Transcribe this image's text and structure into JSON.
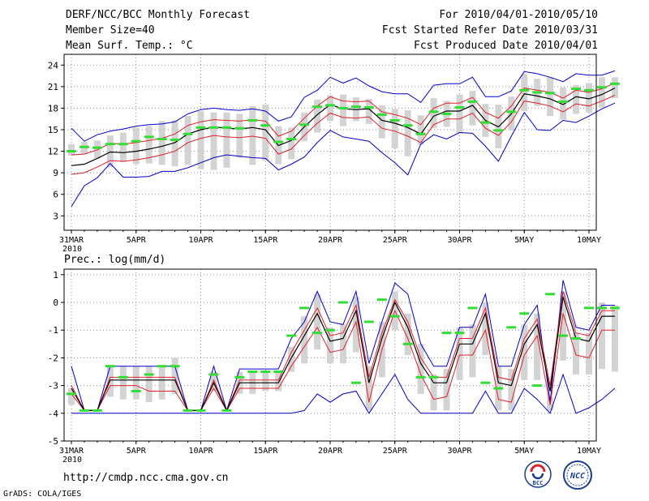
{
  "header": {
    "title": "DERF/NCC/BCC Monthly Forecast",
    "member_size": "Member Size=40",
    "variable": "Mean Surf. Temp.: °C",
    "period": "For 2010/04/01-2010/05/10",
    "started": "Fcst Started Refer Date 2010/03/31",
    "produced": "Fcst Produced Date 2010/04/01"
  },
  "footer": {
    "url": "http://cmdp.ncc.cma.gov.cn",
    "grads": "GrADS: COLA/IGES",
    "logo_bcc": "BCC",
    "logo_ncc": "NCC"
  },
  "colors": {
    "mean": "#000000",
    "spread": "#e0202a",
    "extreme": "#0000cc",
    "box": "#d3d3d3",
    "median": "#33dd33"
  },
  "chart_data": [
    {
      "type": "line",
      "title": "Mean Surf. Temp.: °C",
      "ylabel": "°C",
      "ylim": [
        1,
        25.5
      ],
      "yticks": [
        3,
        6,
        9,
        12,
        15,
        18,
        21,
        24
      ],
      "xticks": [
        0,
        5,
        10,
        15,
        20,
        25,
        30,
        35,
        40
      ],
      "xtick_labels": [
        "31MAR",
        "5APR",
        "10APR",
        "15APR",
        "20APR",
        "25APR",
        "30APR",
        "5MAY",
        "10MAY"
      ],
      "xtick_sublabels": [
        "2010",
        "",
        "",
        "",
        "",
        "",
        "",
        "",
        ""
      ],
      "grid": true,
      "series": [
        {
          "name": "ensemble mean",
          "color": "#000000",
          "values": [
            10,
            10.2,
            11,
            11.9,
            11.8,
            12,
            12.3,
            12.7,
            13.2,
            14.4,
            15,
            15.4,
            15.2,
            15.1,
            15.3,
            15,
            12.8,
            13.5,
            15.4,
            17.1,
            18.5,
            17.9,
            17.8,
            17.9,
            16.3,
            15.9,
            15.3,
            14.4,
            16.9,
            17.6,
            17.6,
            18.4,
            16.3,
            15.4,
            17.2,
            20,
            19.7,
            19.3,
            18.5,
            19.6,
            19.3,
            19.9,
            20.8
          ]
        },
        {
          "name": "mean + 1 sd",
          "color": "#e0202a",
          "values": [
            11.5,
            11.6,
            12.2,
            13.1,
            13,
            13.2,
            13.5,
            13.8,
            14.4,
            15.6,
            16.1,
            16.4,
            16.3,
            16.2,
            16.4,
            16.2,
            14.1,
            14.8,
            16.6,
            18.3,
            19.6,
            19,
            18.9,
            19,
            17.5,
            17.1,
            16.6,
            15.7,
            18,
            18.7,
            18.7,
            19.5,
            17.4,
            16.6,
            18.3,
            20.8,
            20.5,
            20.2,
            19.4,
            20.5,
            20.2,
            20.7,
            21.5
          ]
        },
        {
          "name": "mean - 1 sd",
          "color": "#e0202a",
          "values": [
            8.8,
            9,
            9.8,
            10.7,
            10.6,
            10.8,
            11.1,
            11.5,
            12,
            13.2,
            13.8,
            14.2,
            14,
            13.9,
            14.1,
            13.8,
            11.6,
            12.3,
            14.2,
            15.9,
            17.3,
            16.7,
            16.6,
            16.8,
            15.2,
            14.8,
            14.1,
            13.2,
            15.7,
            16.5,
            16.5,
            17.3,
            15.2,
            14.2,
            16.1,
            19,
            18.7,
            18.3,
            17.5,
            18.6,
            18.3,
            19,
            19.8
          ]
        },
        {
          "name": "ensemble max",
          "color": "#0000cc",
          "values": [
            15.2,
            13.4,
            14.3,
            14.8,
            15.1,
            15.5,
            15.7,
            15.8,
            16.1,
            17.2,
            17.8,
            18,
            17.8,
            17.7,
            17.9,
            17.6,
            16.2,
            16.8,
            19.5,
            20.5,
            22.3,
            21.5,
            22.2,
            21.1,
            20.3,
            20,
            20,
            18.8,
            21.2,
            21.4,
            21.4,
            22.3,
            19.6,
            19.6,
            20.4,
            23.1,
            22.8,
            22.3,
            21.7,
            22.8,
            22.6,
            22.6,
            23.2
          ]
        },
        {
          "name": "ensemble min",
          "color": "#0000cc",
          "values": [
            4.3,
            7.2,
            8.3,
            10.3,
            8.4,
            8.4,
            8.5,
            9.2,
            9.2,
            9.7,
            10.4,
            11.1,
            11.5,
            11.3,
            11.1,
            11,
            9.4,
            10.2,
            11.2,
            13.2,
            14.9,
            14,
            13.7,
            13.4,
            11.8,
            10.4,
            8.7,
            13,
            14.3,
            13.7,
            14.6,
            14.5,
            12.7,
            10.6,
            14.1,
            17.4,
            15,
            14.9,
            16.3,
            16,
            16.9,
            17.9,
            18.7
          ]
        },
        {
          "name": "box top",
          "color": "#d3d3d3",
          "values": [
            13,
            13.3,
            13.5,
            14.2,
            14.6,
            15.3,
            15.5,
            16.2,
            16.3,
            16.9,
            17.6,
            17.4,
            17.4,
            17.2,
            18.3,
            18.5,
            15.5,
            15.3,
            17.4,
            19.2,
            19.8,
            19.9,
            19.5,
            19.3,
            18.4,
            17.9,
            17.7,
            17,
            19.4,
            19,
            19.9,
            20.4,
            18.6,
            18.5,
            19.6,
            22.7,
            22.1,
            22.3,
            20.9,
            21.2,
            21.5,
            22.3,
            22.3
          ]
        },
        {
          "name": "box bottom",
          "color": "#d3d3d3",
          "values": [
            11.4,
            11.6,
            11,
            9.8,
            10.5,
            10.2,
            10.3,
            10.1,
            9.9,
            10.1,
            9.5,
            9.4,
            9.7,
            11.1,
            10.1,
            10.7,
            10.2,
            10.9,
            13.4,
            14.6,
            16.2,
            15.5,
            16.2,
            15.8,
            13.8,
            12.4,
            11.3,
            12.9,
            15.2,
            15.4,
            14.5,
            15.6,
            14,
            12.4,
            14.9,
            17.6,
            18.3,
            16.9,
            16.4,
            17.2,
            17.4,
            18.1,
            19.4
          ]
        },
        {
          "name": "median",
          "color": "#33dd33",
          "values": [
            12,
            12.6,
            12.5,
            13,
            13,
            13.4,
            14,
            13.7,
            13.6,
            14.4,
            15.3,
            15.3,
            15.3,
            15.2,
            16.3,
            15.6,
            13.3,
            13.7,
            15.7,
            18.2,
            18.4,
            18,
            18.2,
            18.1,
            17.1,
            16.3,
            15.6,
            14.4,
            17.5,
            17.2,
            18.1,
            18.9,
            16,
            14.9,
            17.5,
            20.5,
            20.2,
            20.1,
            18.9,
            20.7,
            20.5,
            20.9,
            21.4
          ]
        }
      ]
    },
    {
      "type": "line",
      "title": "Prec.: log(mm/d)",
      "ylabel": "log(mm/d)",
      "ylim": [
        -5,
        1.2
      ],
      "yticks": [
        -5,
        -4,
        -3,
        -2,
        -1,
        0,
        1
      ],
      "xticks": [
        0,
        5,
        10,
        15,
        20,
        25,
        30,
        35,
        40
      ],
      "xtick_labels": [
        "31MAR",
        "5APR",
        "10APR",
        "15APR",
        "20APR",
        "25APR",
        "30APR",
        "5MAY",
        "10MAY"
      ],
      "xtick_sublabels": [
        "2010",
        "",
        "",
        "",
        "",
        "",
        "",
        "",
        ""
      ],
      "grid": true,
      "series": [
        {
          "name": "ensemble mean",
          "color": "#000000",
          "values": [
            -3.1,
            -3.9,
            -3.9,
            -2.8,
            -2.8,
            -2.8,
            -2.8,
            -2.8,
            -2.8,
            -3.9,
            -3.9,
            -2.9,
            -3.9,
            -2.9,
            -2.9,
            -2.9,
            -2.9,
            -2,
            -1.2,
            -0.4,
            -1.4,
            -1.3,
            -0.3,
            -2.9,
            -1.3,
            0,
            -0.9,
            -2.2,
            -2.9,
            -2.9,
            -1.5,
            -1.5,
            -0.4,
            -2.9,
            -3,
            -1.5,
            -0.8,
            -3.2,
            0.2,
            -1.3,
            -1.4,
            -0.5,
            -0.5
          ]
        },
        {
          "name": "mean + 1 sd",
          "color": "#e0202a",
          "values": [
            -3,
            -3.9,
            -3.9,
            -2.7,
            -2.7,
            -2.7,
            -2.7,
            -2.7,
            -2.7,
            -3.9,
            -3.9,
            -2.8,
            -3.9,
            -2.8,
            -2.8,
            -2.8,
            -2.8,
            -1.8,
            -1,
            -0.2,
            -1.2,
            -1.1,
            -0.1,
            -2.7,
            -1.1,
            0.1,
            -0.7,
            -2,
            -2.7,
            -2.7,
            -1.3,
            -1.3,
            -0.2,
            -2.7,
            -2.8,
            -1.3,
            -0.6,
            -3,
            0.4,
            -1.1,
            -1.2,
            -0.3,
            -0.3
          ]
        },
        {
          "name": "mean - 1 sd",
          "color": "#e0202a",
          "values": [
            -3.3,
            -3.9,
            -3.9,
            -3,
            -3,
            -3,
            -3.2,
            -3.2,
            -3.2,
            -3.9,
            -3.9,
            -3.1,
            -3.9,
            -3.1,
            -3.1,
            -3.1,
            -3.1,
            -2.3,
            -1.6,
            -0.9,
            -1.8,
            -1.7,
            -0.7,
            -3.6,
            -1.7,
            -0.3,
            -1.3,
            -2.6,
            -3.5,
            -3.4,
            -1.9,
            -1.9,
            -1,
            -3.5,
            -3.6,
            -1.9,
            -1.2,
            -3.7,
            -0.4,
            -1.9,
            -2,
            -1,
            -1
          ]
        },
        {
          "name": "ensemble max",
          "color": "#0000cc",
          "values": [
            -2.3,
            -3.9,
            -3.9,
            -2.3,
            -2.3,
            -2.3,
            -2.3,
            -2.3,
            -2.3,
            -3.9,
            -3.9,
            -2.3,
            -3.9,
            -2.4,
            -2.4,
            -2.4,
            -2.4,
            -1.3,
            -0.7,
            0.4,
            -0.7,
            -0.8,
            0.4,
            -2.2,
            -0.7,
            0.7,
            0.3,
            -1.5,
            -2.3,
            -2.3,
            -0.9,
            -0.9,
            0.3,
            -2.3,
            -2.3,
            -0.8,
            -0.1,
            -3.6,
            0.8,
            -0.9,
            -1,
            -0.1,
            -0.1
          ]
        },
        {
          "name": "ensemble min",
          "color": "#0000cc",
          "values": [
            -4,
            -4,
            -4,
            -4,
            -4,
            -4,
            -4,
            -4,
            -4,
            -4,
            -4,
            -4,
            -4,
            -4,
            -4,
            -4,
            -4,
            -4,
            -3.9,
            -3.3,
            -3.6,
            -3.3,
            -3.2,
            -4,
            -3.3,
            -2.6,
            -3.5,
            -4,
            -4,
            -4,
            -4,
            -4,
            -3.2,
            -4,
            -4,
            -3.1,
            -3.5,
            -4,
            -2.6,
            -4,
            -3.8,
            -3.5,
            -3.1
          ]
        },
        {
          "name": "box top",
          "color": "#d3d3d3",
          "values": [
            -3.1,
            -3.9,
            -3.9,
            -2.3,
            -2.3,
            -2.3,
            -2.3,
            -2.3,
            -2,
            -3.9,
            -3.9,
            -2.5,
            -3.9,
            -2.5,
            -2.5,
            -2.5,
            -2.5,
            -1.6,
            -0.5,
            0.3,
            -0.9,
            -0.8,
            0.2,
            -2.3,
            -0.7,
            0.4,
            -0.4,
            -1.5,
            -2.6,
            -2.4,
            -0.9,
            -0.8,
            0,
            -2.3,
            -2.4,
            -0.8,
            -0.4,
            -3.4,
            0.4,
            -1.1,
            -1.1,
            0,
            -0.1
          ]
        },
        {
          "name": "box bottom",
          "color": "#d3d3d3",
          "values": [
            -3.7,
            -3.9,
            -3.9,
            -3.4,
            -3.5,
            -3.5,
            -3.6,
            -3.5,
            -3.3,
            -3.9,
            -3.9,
            -3.2,
            -3.9,
            -3.3,
            -3.3,
            -3.2,
            -3.2,
            -2.5,
            -2.2,
            -1.7,
            -2.2,
            -2.2,
            -1.8,
            -3.9,
            -2.7,
            -1,
            -1.9,
            -3.3,
            -3.9,
            -3.9,
            -2.8,
            -2.7,
            -1.9,
            -3.9,
            -3.9,
            -2.8,
            -2.8,
            -3.9,
            -2.1,
            -2.6,
            -2.6,
            -2.4,
            -2.5
          ]
        },
        {
          "name": "median",
          "color": "#33dd33",
          "values": [
            -3.3,
            -3.9,
            -3.9,
            -2.3,
            -2.7,
            -3.2,
            -2.6,
            -2.3,
            -2.3,
            -3.9,
            -3.9,
            -2.6,
            -3.9,
            -2.7,
            -2.5,
            -2.5,
            -2.5,
            -1.2,
            -0.2,
            -1.1,
            -1,
            0,
            -2.9,
            -0.7,
            0.1,
            -0.5,
            -1.5,
            -2.7,
            -2.7,
            -1.1,
            -1.1,
            -0.2,
            -2.9,
            -3.1,
            -0.9,
            -0.4,
            -3,
            0.3,
            -1.2,
            -1.3,
            -0.2,
            -0.2,
            -0.2
          ]
        }
      ]
    }
  ]
}
